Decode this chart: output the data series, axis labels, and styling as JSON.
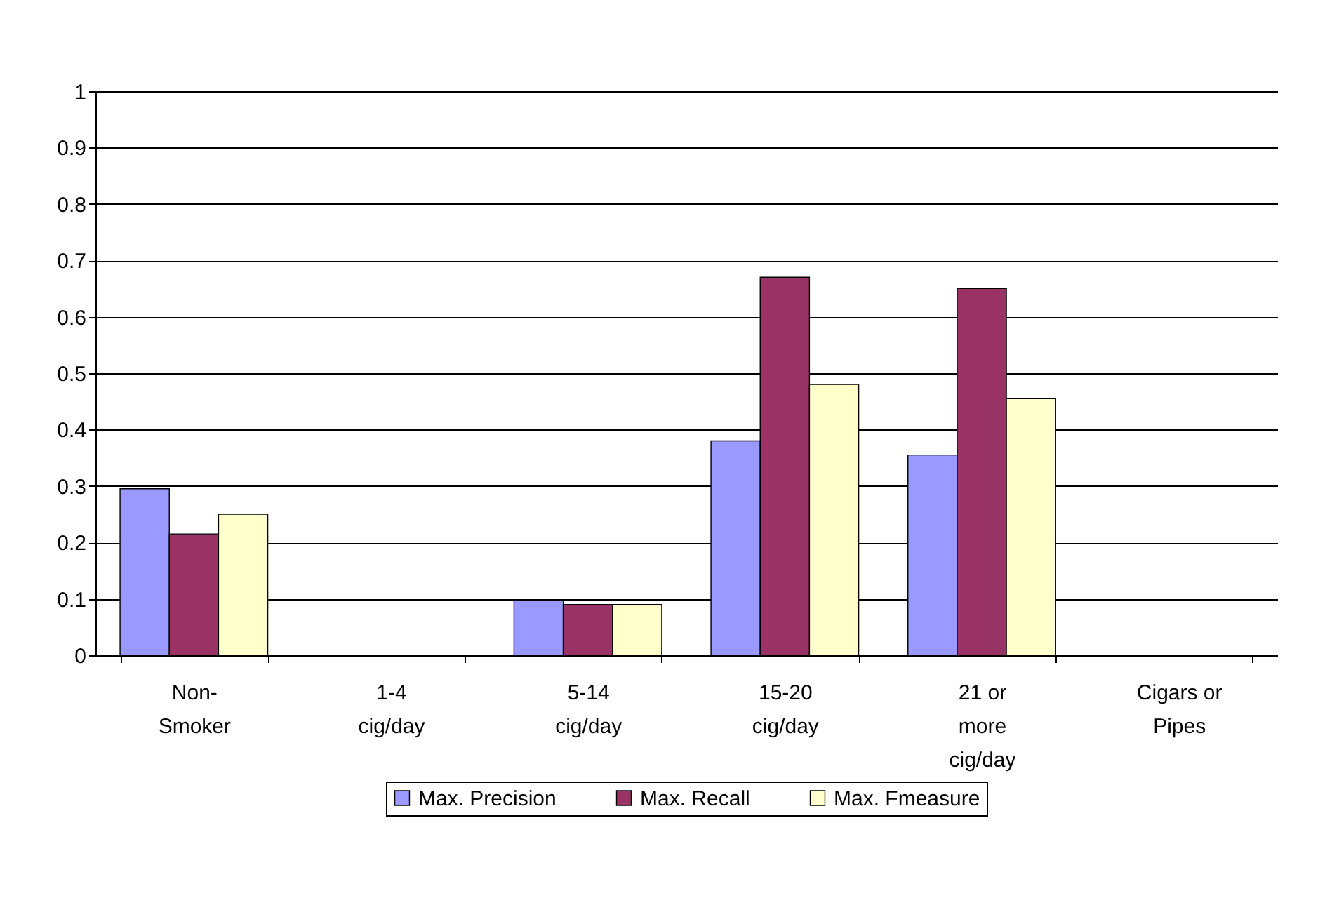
{
  "chart_data": {
    "type": "bar",
    "categories": [
      "Non-Smoker",
      "1-4 cig/day",
      "5-14 cig/day",
      "15-20 cig/day",
      "21 or more cig/day",
      "Cigars or Pipes"
    ],
    "series": [
      {
        "name": "Max. Precision",
        "color": "#9999ff",
        "values": [
          0.295,
          0,
          0.097,
          0.38,
          0.355,
          0
        ]
      },
      {
        "name": "Max. Recall",
        "color": "#993366",
        "values": [
          0.215,
          0,
          0.09,
          0.67,
          0.65,
          0
        ]
      },
      {
        "name": "Max. Fmeasure",
        "color": "#ffffcc",
        "values": [
          0.25,
          0,
          0.09,
          0.48,
          0.455,
          0
        ]
      }
    ],
    "ylim": [
      0,
      1
    ],
    "yticks": [
      0,
      0.1,
      0.2,
      0.3,
      0.4,
      0.5,
      0.6,
      0.7,
      0.8,
      0.9,
      1
    ],
    "grid": "y",
    "legend": "bottom"
  }
}
